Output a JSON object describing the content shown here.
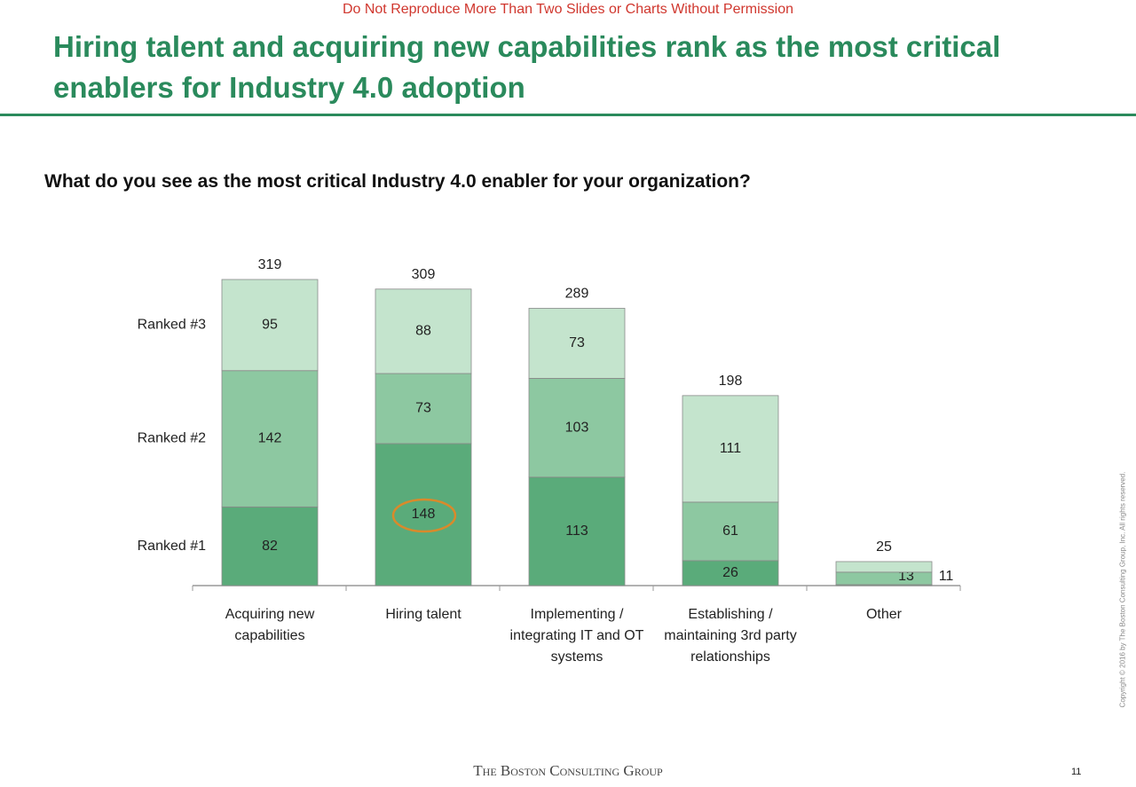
{
  "header": {
    "notice": "Do Not Reproduce More Than Two Slides or Charts Without Permission",
    "title": "Hiring talent and acquiring new capabilities rank as the most critical enablers for Industry 4.0 adoption"
  },
  "chart_data": {
    "type": "stacked_bar",
    "title": "What do you see as the most critical Industry 4.0 enabler for your organization?",
    "categories": [
      "Acquiring new capabilities",
      "Hiring talent",
      "Implementing / integrating IT and OT systems",
      "Establishing / maintaining 3rd party relationships",
      "Other"
    ],
    "series": [
      {
        "name": "Ranked #1",
        "color": "#5aab7a",
        "values": [
          82,
          148,
          113,
          26,
          1
        ]
      },
      {
        "name": "Ranked #2",
        "color": "#8dc8a1",
        "values": [
          142,
          73,
          103,
          61,
          13
        ]
      },
      {
        "name": "Ranked #3",
        "color": "#c4e4cd",
        "values": [
          95,
          88,
          73,
          111,
          11
        ]
      }
    ],
    "totals": [
      319,
      309,
      289,
      198,
      25
    ]
  },
  "footer": {
    "brand": "The Boston Consulting Group",
    "page": "11",
    "copyright": "Copyright © 2016 by The Boston Consulting Group, Inc. All rights reserved."
  }
}
